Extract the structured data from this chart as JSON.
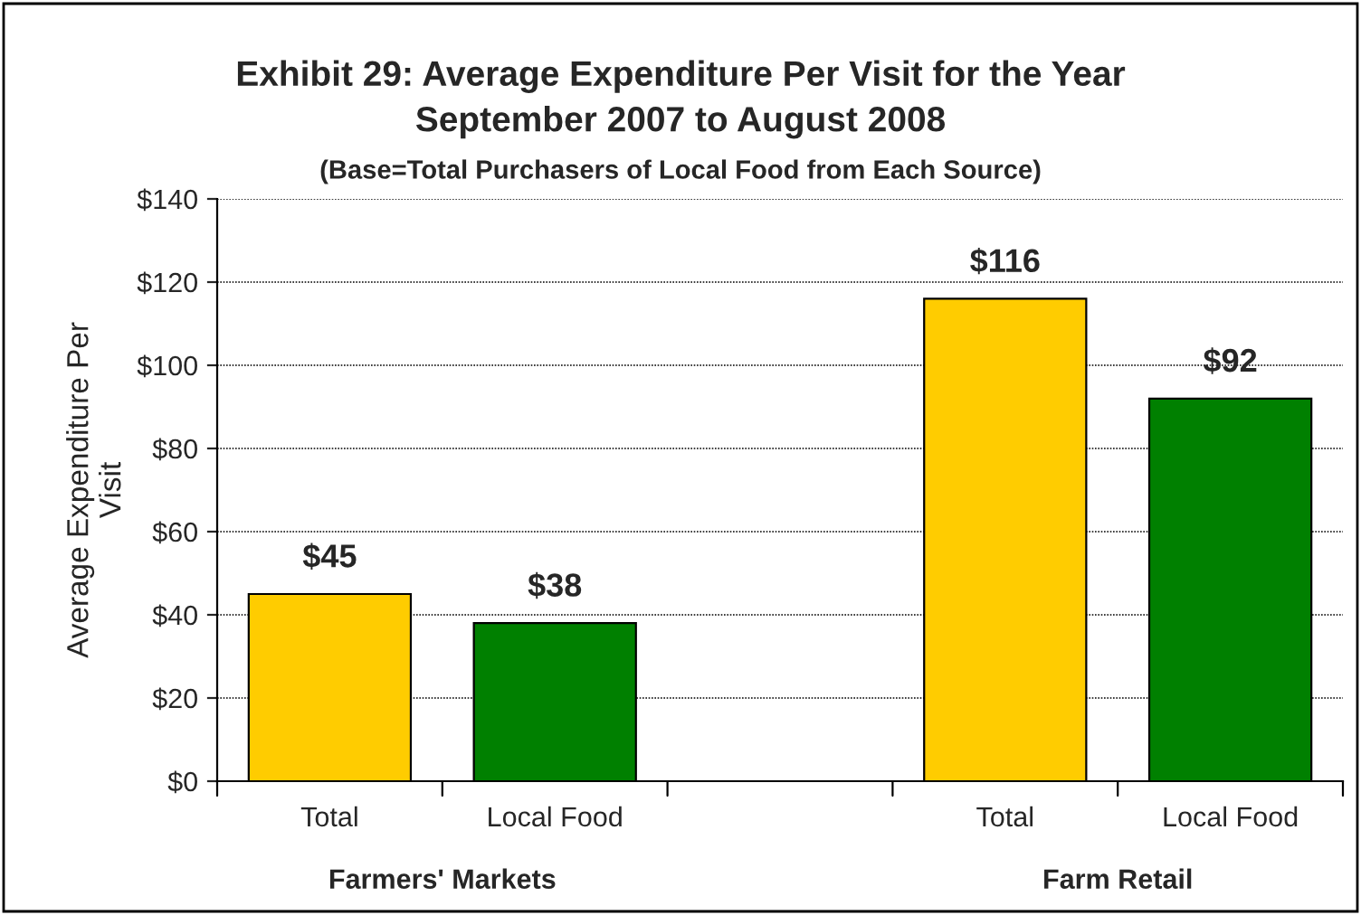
{
  "chart_data": {
    "type": "bar",
    "title": "Exhibit 29: Average Expenditure Per Visit for the Year\nSeptember 2007 to August 2008",
    "subtitle": "(Base=Total Purchasers of Local Food from Each Source)",
    "ylabel": "Average Expenditure Per\nVisit",
    "categories": [
      "Total",
      "Local Food",
      null,
      "Total",
      "Local Food"
    ],
    "values": [
      45,
      38,
      null,
      116,
      92
    ],
    "colors": [
      "#ffcc00",
      "#008000",
      null,
      "#ffcc00",
      "#008000"
    ],
    "value_labels": [
      "$45",
      "$38",
      null,
      "$116",
      "$92"
    ],
    "ylim": [
      0,
      140
    ],
    "yticks": [
      {
        "value": 0,
        "label": "$0"
      },
      {
        "value": 20,
        "label": "$20"
      },
      {
        "value": 40,
        "label": "$40"
      },
      {
        "value": 60,
        "label": "$60"
      },
      {
        "value": 80,
        "label": "$80"
      },
      {
        "value": 100,
        "label": "$100"
      },
      {
        "value": 120,
        "label": "$120"
      },
      {
        "value": 140,
        "label": "$140"
      }
    ],
    "grid": "y",
    "annotations": [
      "Farmers' Markets",
      "Farm Retail"
    ]
  }
}
